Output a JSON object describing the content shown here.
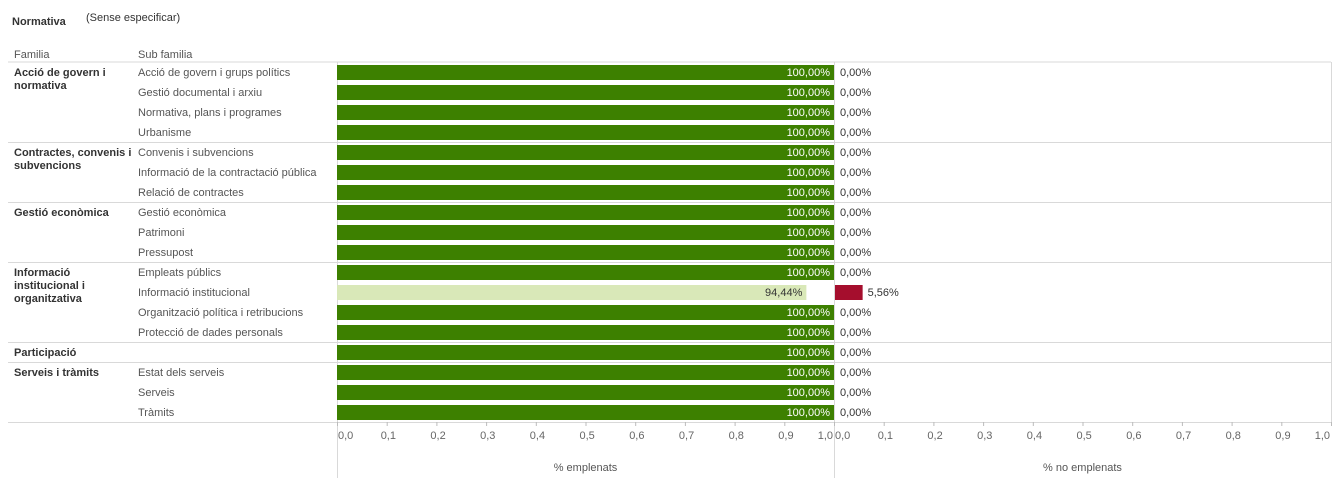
{
  "header": {
    "title": "Normativa",
    "filter_value": "(Sense especificar)"
  },
  "columns": {
    "family": "Familia",
    "subfamily": "Sub familia"
  },
  "colors": {
    "full": "#3d8000",
    "partial": "#d9e8b8",
    "neg": "#a50e2d",
    "grid": "#d9d9d9"
  },
  "chart_data": {
    "type": "bar",
    "orientation": "horizontal",
    "categories": [
      {
        "family": "Acció de govern i normativa",
        "subfamily": "Acció de govern i grups polítics",
        "emplenats": 100.0,
        "no_emplenats": 0.0,
        "emplenats_label": "100,00%",
        "no_emplenats_label": "0,00%"
      },
      {
        "family": "Acció de govern i normativa",
        "subfamily": "Gestió documental i arxiu",
        "emplenats": 100.0,
        "no_emplenats": 0.0,
        "emplenats_label": "100,00%",
        "no_emplenats_label": "0,00%"
      },
      {
        "family": "Acció de govern i normativa",
        "subfamily": "Normativa, plans i programes",
        "emplenats": 100.0,
        "no_emplenats": 0.0,
        "emplenats_label": "100,00%",
        "no_emplenats_label": "0,00%"
      },
      {
        "family": "Acció de govern i normativa",
        "subfamily": "Urbanisme",
        "emplenats": 100.0,
        "no_emplenats": 0.0,
        "emplenats_label": "100,00%",
        "no_emplenats_label": "0,00%"
      },
      {
        "family": "Contractes, convenis i subvencions",
        "subfamily": "Convenis i subvencions",
        "emplenats": 100.0,
        "no_emplenats": 0.0,
        "emplenats_label": "100,00%",
        "no_emplenats_label": "0,00%"
      },
      {
        "family": "Contractes, convenis i subvencions",
        "subfamily": "Informació de la contractació pública",
        "emplenats": 100.0,
        "no_emplenats": 0.0,
        "emplenats_label": "100,00%",
        "no_emplenats_label": "0,00%"
      },
      {
        "family": "Contractes, convenis i subvencions",
        "subfamily": "Relació de contractes",
        "emplenats": 100.0,
        "no_emplenats": 0.0,
        "emplenats_label": "100,00%",
        "no_emplenats_label": "0,00%"
      },
      {
        "family": "Gestió econòmica",
        "subfamily": "Gestió econòmica",
        "emplenats": 100.0,
        "no_emplenats": 0.0,
        "emplenats_label": "100,00%",
        "no_emplenats_label": "0,00%"
      },
      {
        "family": "Gestió econòmica",
        "subfamily": "Patrimoni",
        "emplenats": 100.0,
        "no_emplenats": 0.0,
        "emplenats_label": "100,00%",
        "no_emplenats_label": "0,00%"
      },
      {
        "family": "Gestió econòmica",
        "subfamily": "Pressupost",
        "emplenats": 100.0,
        "no_emplenats": 0.0,
        "emplenats_label": "100,00%",
        "no_emplenats_label": "0,00%"
      },
      {
        "family": "Informació institucional i organitzativa",
        "subfamily": "Empleats públics",
        "emplenats": 100.0,
        "no_emplenats": 0.0,
        "emplenats_label": "100,00%",
        "no_emplenats_label": "0,00%"
      },
      {
        "family": "Informació institucional i organitzativa",
        "subfamily": "Informació institucional",
        "emplenats": 94.44,
        "no_emplenats": 5.56,
        "emplenats_label": "94,44%",
        "no_emplenats_label": "5,56%"
      },
      {
        "family": "Informació institucional i organitzativa",
        "subfamily": "Organització política i retribucions",
        "emplenats": 100.0,
        "no_emplenats": 0.0,
        "emplenats_label": "100,00%",
        "no_emplenats_label": "0,00%"
      },
      {
        "family": "Informació institucional i organitzativa",
        "subfamily": "Protecció de dades personals",
        "emplenats": 100.0,
        "no_emplenats": 0.0,
        "emplenats_label": "100,00%",
        "no_emplenats_label": "0,00%"
      },
      {
        "family": "Participació",
        "subfamily": "",
        "emplenats": 100.0,
        "no_emplenats": 0.0,
        "emplenats_label": "100,00%",
        "no_emplenats_label": "0,00%"
      },
      {
        "family": "Serveis i tràmits",
        "subfamily": "Estat dels serveis",
        "emplenats": 100.0,
        "no_emplenats": 0.0,
        "emplenats_label": "100,00%",
        "no_emplenats_label": "0,00%"
      },
      {
        "family": "Serveis i tràmits",
        "subfamily": "Serveis",
        "emplenats": 100.0,
        "no_emplenats": 0.0,
        "emplenats_label": "100,00%",
        "no_emplenats_label": "0,00%"
      },
      {
        "family": "Serveis i tràmits",
        "subfamily": "Tràmits",
        "emplenats": 100.0,
        "no_emplenats": 0.0,
        "emplenats_label": "100,00%",
        "no_emplenats_label": "0,00%"
      }
    ],
    "family_groups": [
      {
        "lines": [
          "Acció de govern i",
          "normativa"
        ]
      },
      {
        "lines": [
          "Contractes, convenis i",
          "subvencions"
        ]
      },
      {
        "lines": [
          "Gestió econòmica"
        ]
      },
      {
        "lines": [
          "Informació",
          "institucional i",
          "organitzativa"
        ]
      },
      {
        "lines": [
          "Participació"
        ]
      },
      {
        "lines": [
          "Serveis i tràmits"
        ]
      }
    ],
    "group_sizes": [
      4,
      3,
      3,
      4,
      1,
      3
    ],
    "panels": [
      {
        "name": "% emplenats",
        "xlabel": "% emplenats",
        "xlim": [
          0,
          1.0
        ]
      },
      {
        "name": "% no emplenats",
        "xlabel": "% no emplenats",
        "xlim": [
          0,
          1.0
        ]
      }
    ],
    "ticks": [
      "0,0",
      "0,1",
      "0,2",
      "0,3",
      "0,4",
      "0,5",
      "0,6",
      "0,7",
      "0,8",
      "0,9",
      "1,0"
    ],
    "grid": false
  }
}
